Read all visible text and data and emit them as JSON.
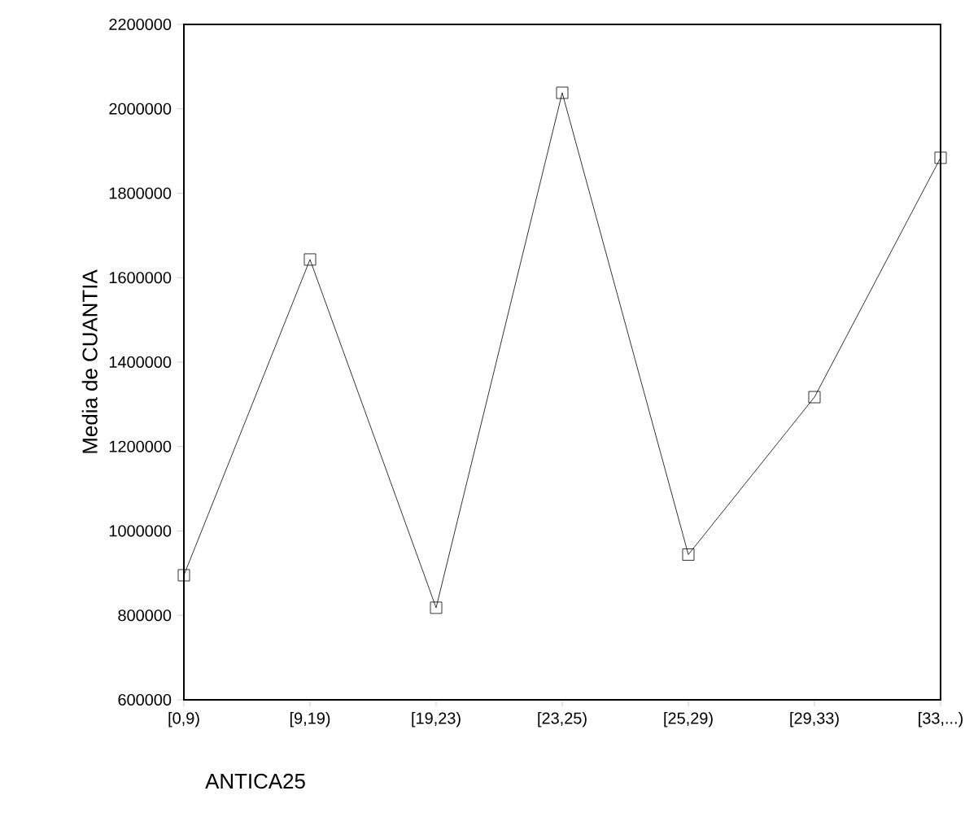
{
  "chart_data": {
    "type": "line",
    "xlabel": "ANTICA25",
    "ylabel": "Media de CUANTIA",
    "categories": [
      "[0,9)",
      "[9,19)",
      "[19,23)",
      "[23,25)",
      "[25,29)",
      "[29,33)",
      "[33,...)"
    ],
    "values": [
      895000,
      1643000,
      818000,
      2038000,
      944000,
      1317000,
      1884000
    ],
    "color": "#000000",
    "marker": "square",
    "line_style": "solid",
    "ylim": [
      600000,
      2200000
    ],
    "yticks": [
      600000,
      800000,
      1000000,
      1200000,
      1400000,
      1600000,
      1800000,
      2000000,
      2200000
    ],
    "grid": false
  }
}
